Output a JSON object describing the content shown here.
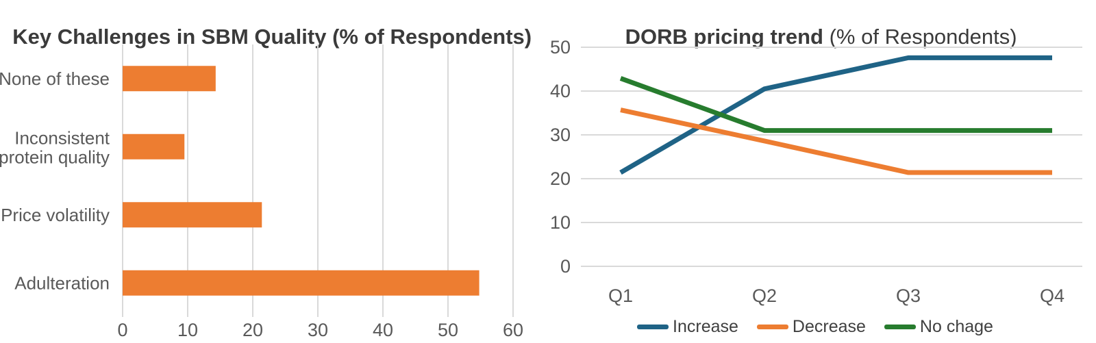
{
  "left_chart": {
    "title": "Key Challenges in SBM Quality (% of Respondents)",
    "chart_data": {
      "type": "bar",
      "orientation": "horizontal",
      "categories": [
        "None of these",
        "Inconsistent\nprotein quality",
        "Price volatility",
        "Adulteration"
      ],
      "values": [
        14.3,
        9.5,
        21.4,
        54.8
      ],
      "title": "Key Challenges in SBM Quality (% of Respondents)",
      "xlabel": "",
      "ylabel": "",
      "xlim": [
        0,
        60
      ],
      "xticks": [
        0,
        10,
        20,
        30,
        40,
        50,
        60
      ],
      "grid": true,
      "bar_color": "#ED7D31"
    }
  },
  "right_chart": {
    "title_bold": "DORB pricing trend",
    "title_regular": " (% of Respondents)",
    "chart_data": {
      "type": "line",
      "x": [
        "Q1",
        "Q2",
        "Q3",
        "Q4"
      ],
      "series": [
        {
          "name": "Increase",
          "color": "#1F6386",
          "values": [
            21.4,
            40.5,
            47.6,
            47.6
          ]
        },
        {
          "name": "Decrease",
          "color": "#ED7D31",
          "values": [
            35.7,
            28.6,
            21.4,
            21.4
          ]
        },
        {
          "name": "No chage",
          "color": "#277C2E",
          "values": [
            42.9,
            31.0,
            31.0,
            31.0
          ]
        }
      ],
      "title": "DORB pricing trend (% of Respondents)",
      "xlabel": "",
      "ylabel": "",
      "ylim": [
        0,
        50
      ],
      "yticks": [
        0,
        10,
        20,
        30,
        40,
        50
      ],
      "grid": true,
      "legend_position": "bottom"
    }
  },
  "style": {
    "grid_color": "#D9D9D9",
    "axis_text_color": "#595959",
    "title_color": "#3B3B3B",
    "legend_text_color": "#404040",
    "background": "#FFFFFF"
  }
}
